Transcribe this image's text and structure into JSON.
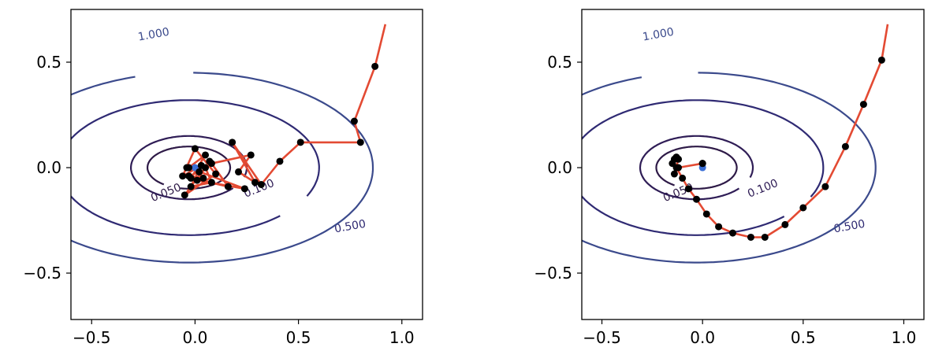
{
  "chart_data": [
    {
      "type": "line",
      "title": "",
      "xlabel": "",
      "ylabel": "",
      "xlim": [
        -0.6,
        1.1
      ],
      "ylim": [
        -0.72,
        0.75
      ],
      "xticks": [
        -0.5,
        0.0,
        0.5,
        1.0
      ],
      "xtick_labels": [
        "−0.5",
        "0.0",
        "0.5",
        "1.0"
      ],
      "yticks": [
        0.5,
        0.0,
        -0.5
      ],
      "ytick_labels": [
        "0.5",
        "0.0",
        "−0.5"
      ],
      "grid": false,
      "contour_levels": [
        {
          "label": "0.050",
          "a": 0.2,
          "b": 0.1,
          "color": "#2e1a47",
          "label_x": -0.14,
          "label_y": -0.12
        },
        {
          "label": "0.100",
          "a": 0.28,
          "b": 0.15,
          "color": "#2f1d56",
          "label_x": 0.31,
          "label_y": -0.1
        },
        {
          "label": "0.500",
          "a": 0.63,
          "b": 0.32,
          "color": "#2f2a73",
          "label_x": 0.75,
          "label_y": -0.28
        },
        {
          "label": "1.000",
          "a": 0.89,
          "b": 0.45,
          "color": "#3b4a8c",
          "label_x": -0.2,
          "label_y": 0.63
        }
      ],
      "path_color": "#e34a33",
      "point_color": "#000000",
      "minimum_color": "#3b6fd6",
      "trajectory": {
        "x": [
          0.92,
          0.87,
          0.77,
          0.8,
          0.51,
          0.41,
          0.32,
          0.18,
          0.29,
          0.21,
          0.27,
          0.08,
          0.16,
          -0.02,
          0.05,
          -0.03,
          0.24,
          0.01,
          0.07,
          -0.05,
          0.1,
          0.0,
          -0.06,
          0.03,
          -0.02,
          0.08,
          0.05,
          -0.04,
          0.02,
          -0.03,
          0.04
        ],
        "y": [
          0.68,
          0.48,
          0.22,
          0.12,
          0.12,
          0.03,
          -0.08,
          0.12,
          -0.07,
          -0.02,
          0.06,
          0.02,
          -0.09,
          -0.05,
          0.06,
          0.0,
          -0.1,
          -0.06,
          0.03,
          -0.13,
          -0.03,
          0.09,
          -0.04,
          0.01,
          -0.09,
          -0.07,
          0.0,
          0.0,
          -0.02,
          -0.04,
          -0.05
        ]
      }
    },
    {
      "type": "line",
      "title": "",
      "xlabel": "",
      "ylabel": "",
      "xlim": [
        -0.6,
        1.1
      ],
      "ylim": [
        -0.72,
        0.75
      ],
      "xticks": [
        -0.5,
        0.0,
        0.5,
        1.0
      ],
      "xtick_labels": [
        "−0.5",
        "0.0",
        "0.5",
        "1.0"
      ],
      "yticks": [
        0.5,
        0.0,
        -0.5
      ],
      "ytick_labels": [
        "0.5",
        "0.0",
        "−0.5"
      ],
      "grid": false,
      "contour_levels": [
        {
          "label": "0.050",
          "a": 0.2,
          "b": 0.1,
          "color": "#2e1a47",
          "label_x": -0.12,
          "label_y": -0.12
        },
        {
          "label": "0.100",
          "a": 0.28,
          "b": 0.15,
          "color": "#2f1d56",
          "label_x": 0.3,
          "label_y": -0.1
        },
        {
          "label": "0.500",
          "a": 0.63,
          "b": 0.32,
          "color": "#2f2a73",
          "label_x": 0.73,
          "label_y": -0.28
        },
        {
          "label": "1.000",
          "a": 0.89,
          "b": 0.45,
          "color": "#3b4a8c",
          "label_x": -0.22,
          "label_y": 0.63
        }
      ],
      "path_color": "#e34a33",
      "point_color": "#000000",
      "minimum_color": "#3b6fd6",
      "trajectory": {
        "x": [
          0.92,
          0.89,
          0.8,
          0.71,
          0.61,
          0.5,
          0.41,
          0.31,
          0.24,
          0.15,
          0.08,
          0.02,
          -0.03,
          -0.07,
          -0.1,
          -0.13,
          -0.15,
          -0.14,
          -0.13,
          -0.12,
          -0.14,
          -0.12,
          0.0,
          0.0
        ],
        "y": [
          0.68,
          0.51,
          0.3,
          0.1,
          -0.09,
          -0.19,
          -0.27,
          -0.33,
          -0.33,
          -0.31,
          -0.28,
          -0.22,
          -0.15,
          -0.1,
          -0.05,
          0.0,
          0.02,
          0.04,
          0.05,
          0.04,
          -0.03,
          0.0,
          0.02,
          0.02
        ]
      }
    }
  ]
}
